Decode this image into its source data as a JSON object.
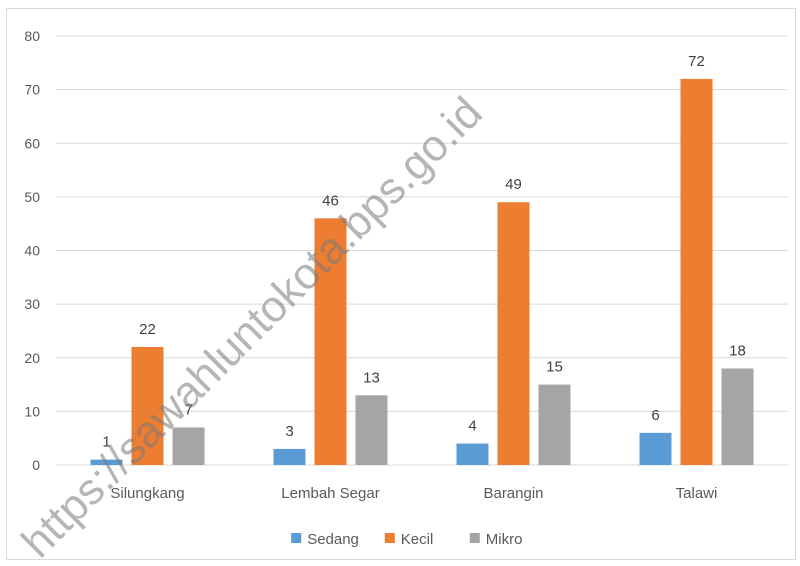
{
  "chart_data": {
    "type": "bar",
    "categories": [
      "Silungkang",
      "Lembah Segar",
      "Barangin",
      "Talawi"
    ],
    "series": [
      {
        "name": "Sedang",
        "color": "#5b9bd5",
        "values": [
          1,
          3,
          4,
          6
        ]
      },
      {
        "name": "Kecil",
        "color": "#ed7d31",
        "values": [
          22,
          46,
          49,
          72
        ]
      },
      {
        "name": "Mikro",
        "color": "#a5a5a5",
        "values": [
          7,
          13,
          15,
          18
        ]
      }
    ],
    "ylim": [
      0,
      80
    ],
    "yticks": [
      0,
      10,
      20,
      30,
      40,
      50,
      60,
      70,
      80
    ],
    "grid": true,
    "legend_position": "bottom",
    "title": "",
    "xlabel": "",
    "ylabel": ""
  },
  "watermark": "https://sawahluntokota.bps.go.id"
}
